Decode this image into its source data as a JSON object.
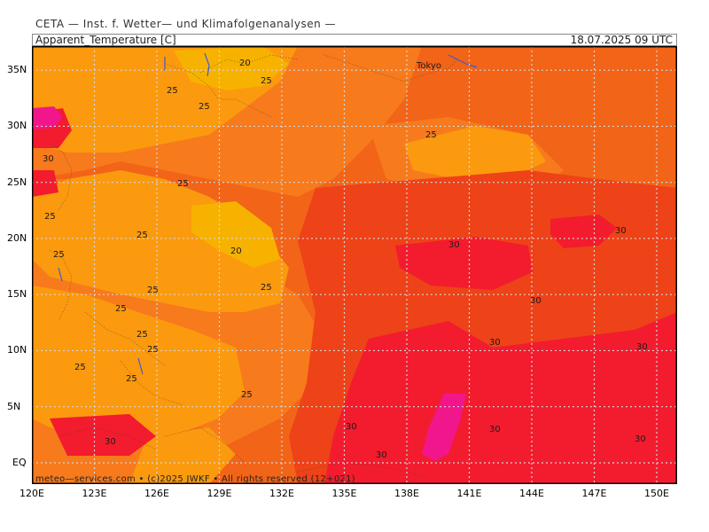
{
  "header": {
    "institute": "CETA — Inst. f. Wetter— und Klimafolgenanalysen —",
    "parameter": "Apparent_Temperature [C]",
    "valid_time": "18.07.2025 09 UTC"
  },
  "map": {
    "lat_labels": [
      "35N",
      "30N",
      "25N",
      "20N",
      "15N",
      "10N",
      "5N",
      "EQ"
    ],
    "lon_labels": [
      "120E",
      "123E",
      "126E",
      "129E",
      "132E",
      "135E",
      "138E",
      "141E",
      "144E",
      "147E",
      "150E"
    ],
    "place_labels": [
      {
        "name": "Tokyo"
      }
    ],
    "value_labels": [
      {
        "text": "20"
      },
      {
        "text": "25"
      },
      {
        "text": "25"
      },
      {
        "text": "25"
      },
      {
        "text": "25"
      },
      {
        "text": "30"
      },
      {
        "text": "25"
      },
      {
        "text": "25"
      },
      {
        "text": "25"
      },
      {
        "text": "25"
      },
      {
        "text": "20"
      },
      {
        "text": "25"
      },
      {
        "text": "30"
      },
      {
        "text": "30"
      },
      {
        "text": "25"
      },
      {
        "text": "25"
      },
      {
        "text": "30"
      },
      {
        "text": "25"
      },
      {
        "text": "25"
      },
      {
        "text": "25"
      },
      {
        "text": "25"
      },
      {
        "text": "30"
      },
      {
        "text": "25"
      },
      {
        "text": "30"
      },
      {
        "text": "30"
      },
      {
        "text": "30"
      },
      {
        "text": "30"
      },
      {
        "text": "30"
      },
      {
        "text": "30"
      }
    ],
    "colors": {
      "c20": "#f7b200",
      "c25": "#fb9a0e",
      "c27": "#f77a1c",
      "c29": "#f26418",
      "c31": "#ee4218",
      "c33": "#f21c2e",
      "c35": "#f2168c",
      "grid": "#d6d6d6",
      "frame": "#000000"
    }
  },
  "credit": "meteo—services.com  •  (c)2025 JWKF  •  All rights reserved  (12+021)"
}
